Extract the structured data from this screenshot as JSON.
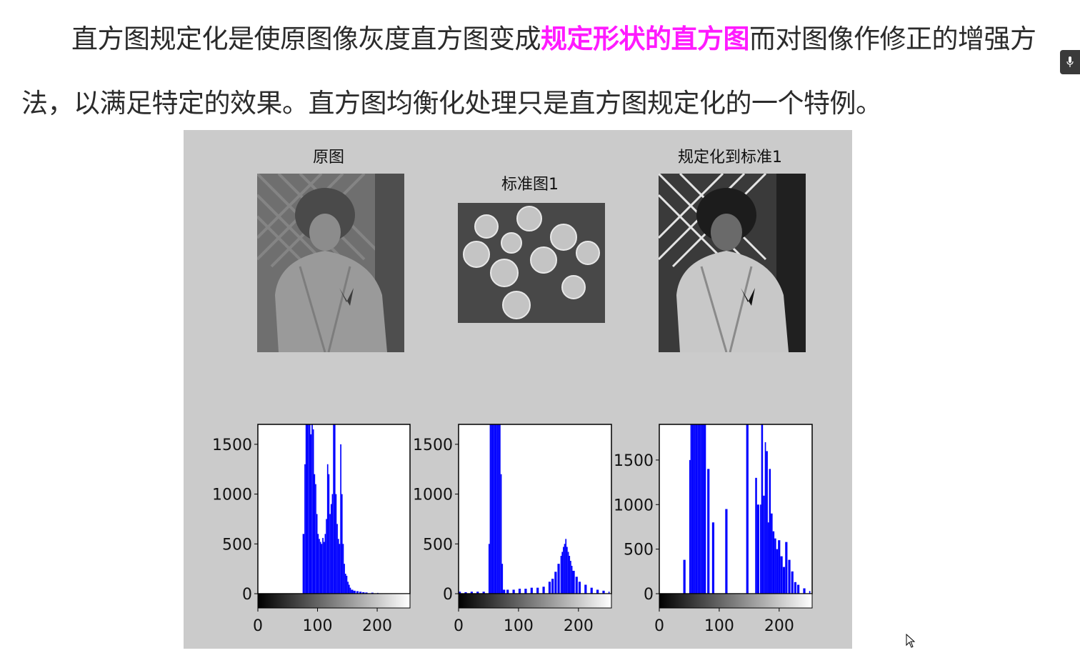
{
  "article": {
    "part1": "直方图规定化是使原图像灰度直方图变成",
    "highlight": "规定形状的直方图",
    "part2": "而对图像作修正的增强方法，以满足特定的效果。直方图均衡化处理只是直方图规定化的一个特例。",
    "highlight_color": "#ff1aff"
  },
  "figure": {
    "titles": {
      "original": "原图",
      "standard": "标准图1",
      "matched": "规定化到标准1"
    },
    "background_color": "#cbcbcb",
    "bar_color": "#0000ff"
  },
  "chart_data": [
    {
      "type": "bar",
      "title": "原图",
      "xlim": [
        0,
        255
      ],
      "ylim": [
        0,
        1700
      ],
      "xticks": [
        0,
        100,
        200
      ],
      "yticks": [
        0,
        500,
        1000,
        1500
      ],
      "series": [
        {
          "name": "histogram",
          "x": [
            75,
            78,
            80,
            82,
            84,
            86,
            88,
            90,
            92,
            94,
            96,
            98,
            100,
            102,
            104,
            106,
            108,
            110,
            112,
            114,
            116,
            118,
            120,
            122,
            124,
            126,
            128,
            130,
            132,
            134,
            136,
            138,
            140,
            142,
            144,
            146,
            148,
            150,
            152,
            154,
            156,
            160,
            165,
            170,
            175,
            180,
            190,
            200
          ],
          "values": [
            600,
            1300,
            1700,
            1700,
            1700,
            1700,
            1600,
            1700,
            1650,
            1200,
            1100,
            800,
            600,
            550,
            520,
            500,
            560,
            520,
            600,
            750,
            1300,
            1200,
            800,
            900,
            1000,
            1700,
            1700,
            1000,
            700,
            550,
            500,
            1500,
            1000,
            500,
            300,
            200,
            180,
            120,
            90,
            60,
            40,
            30,
            25,
            20,
            15,
            12,
            10,
            8
          ]
        }
      ]
    },
    {
      "type": "bar",
      "title": "标准图1",
      "xlim": [
        0,
        255
      ],
      "ylim": [
        0,
        1700
      ],
      "xticks": [
        0,
        100,
        200
      ],
      "yticks": [
        0,
        500,
        1000,
        1500
      ],
      "series": [
        {
          "name": "histogram",
          "x": [
            0,
            10,
            20,
            30,
            40,
            50,
            52,
            54,
            56,
            58,
            60,
            62,
            64,
            66,
            68,
            70,
            72,
            74,
            80,
            90,
            100,
            110,
            120,
            130,
            140,
            150,
            155,
            160,
            165,
            170,
            172,
            174,
            176,
            178,
            180,
            182,
            184,
            186,
            188,
            190,
            195,
            200,
            210,
            220,
            230,
            240,
            250
          ],
          "values": [
            20,
            15,
            20,
            20,
            20,
            500,
            1700,
            1700,
            1700,
            1700,
            1700,
            1700,
            1700,
            1700,
            1700,
            1200,
            300,
            40,
            40,
            40,
            50,
            50,
            60,
            60,
            70,
            120,
            150,
            220,
            300,
            380,
            420,
            470,
            500,
            550,
            470,
            420,
            380,
            330,
            280,
            230,
            170,
            120,
            90,
            60,
            40,
            30,
            20
          ]
        }
      ]
    },
    {
      "type": "bar",
      "title": "规定化到标准1",
      "xlim": [
        0,
        255
      ],
      "ylim": [
        0,
        1900
      ],
      "xticks": [
        0,
        100,
        200
      ],
      "yticks": [
        0,
        500,
        1000,
        1500
      ],
      "series": [
        {
          "name": "histogram",
          "x": [
            40,
            50,
            52,
            54,
            56,
            58,
            60,
            62,
            64,
            66,
            68,
            70,
            72,
            74,
            80,
            88,
            110,
            145,
            160,
            163,
            168,
            170,
            173,
            176,
            178,
            181,
            183,
            186,
            189,
            192,
            195,
            198,
            202,
            206,
            210,
            215,
            220,
            225,
            230,
            240,
            250
          ],
          "values": [
            380,
            1500,
            1900,
            1900,
            1900,
            1900,
            1900,
            1900,
            1900,
            1900,
            1900,
            1900,
            1900,
            1900,
            1400,
            800,
            950,
            1900,
            1300,
            1000,
            1000,
            1900,
            1100,
            1700,
            1600,
            800,
            1400,
            900,
            700,
            620,
            500,
            600,
            420,
            300,
            580,
            380,
            250,
            130,
            100,
            60,
            30
          ]
        }
      ]
    }
  ]
}
